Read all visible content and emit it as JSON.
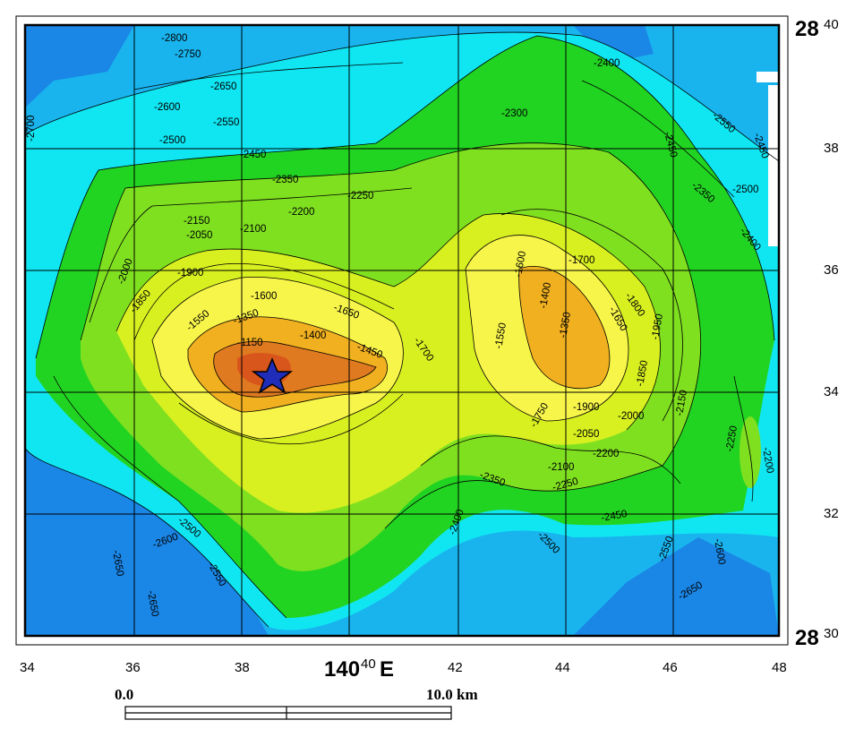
{
  "map": {
    "lat_top": {
      "deg": "28",
      "min": "40"
    },
    "lat_bottom": {
      "deg": "28",
      "min": "30"
    },
    "lat_ticks": [
      "38",
      "36",
      "34",
      "32"
    ],
    "lon_ticks": [
      "34",
      "36",
      "38",
      "42",
      "44",
      "46",
      "48"
    ],
    "lon_center": {
      "deg": "140",
      "min": "40",
      "suffix": "E"
    },
    "marker": {
      "type": "star",
      "color": "#1f2db8"
    },
    "contour_labels": [
      "-2800",
      "-2750",
      "-2650",
      "-2600",
      "-2550",
      "-2500",
      "-2450",
      "-2700",
      "-2400",
      "-2300",
      "-2550",
      "-2450",
      "-2450",
      "-2350",
      "-2500",
      "-2400",
      "-2350",
      "-2250",
      "-2200",
      "-2150",
      "-2100",
      "-2050",
      "-2000",
      "-1900",
      "-1850",
      "-1600",
      "-1550",
      "-1350",
      "-1150",
      "-1650",
      "-1400",
      "-1450",
      "-1700",
      "-1600",
      "-1700",
      "-1400",
      "-1550",
      "-1350",
      "-1650",
      "-1800",
      "-1950",
      "-1850",
      "-1900",
      "-2000",
      "-2150",
      "-1750",
      "-2050",
      "-2100",
      "-2200",
      "-2250",
      "-2350",
      "-2400",
      "-2450",
      "-2500",
      "-2550",
      "-2600",
      "-2650",
      "-2650",
      "-2250",
      "-2200",
      "-2500",
      "-2600",
      "-2650",
      "-2550"
    ],
    "colors": {
      "deep": "#1a86e6",
      "mid_deep": "#19b4ee",
      "cyan": "#10e6f2",
      "green": "#22d422",
      "light_green": "#7fe020",
      "yellow_green": "#d8f020",
      "yellow": "#f8f54a",
      "orange": "#f0b020",
      "dark_orange": "#e07a20",
      "red_orange": "#d8561c"
    }
  },
  "scale": {
    "start": "0.0",
    "end": "10.0 km"
  }
}
